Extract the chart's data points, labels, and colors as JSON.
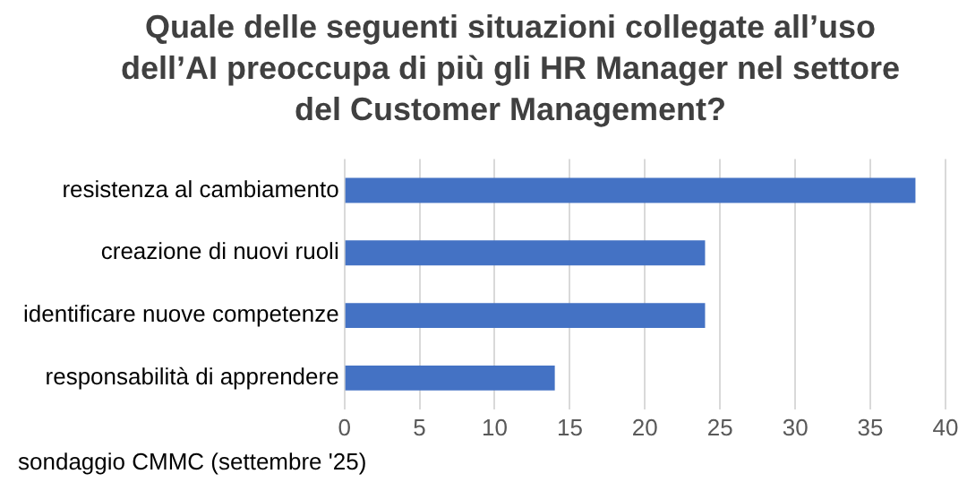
{
  "chart_data": {
    "type": "bar",
    "orientation": "horizontal",
    "title": "Quale delle seguenti situazioni collegate all’uso dell’AI preoccupa di più gli HR Manager nel settore del Customer Management?",
    "categories": [
      "resistenza al cambiamento",
      "creazione di nuovi ruoli",
      "identificare nuove competenze",
      "responsabilità di apprendere"
    ],
    "values": [
      38,
      24,
      24,
      14
    ],
    "color": "#4472c4",
    "xlim": [
      0,
      40
    ],
    "xticks": [
      0,
      5,
      10,
      15,
      20,
      25,
      30,
      35,
      40
    ],
    "grid": "x",
    "annotations": [
      "sondaggio CMMC (settembre '25)"
    ]
  }
}
